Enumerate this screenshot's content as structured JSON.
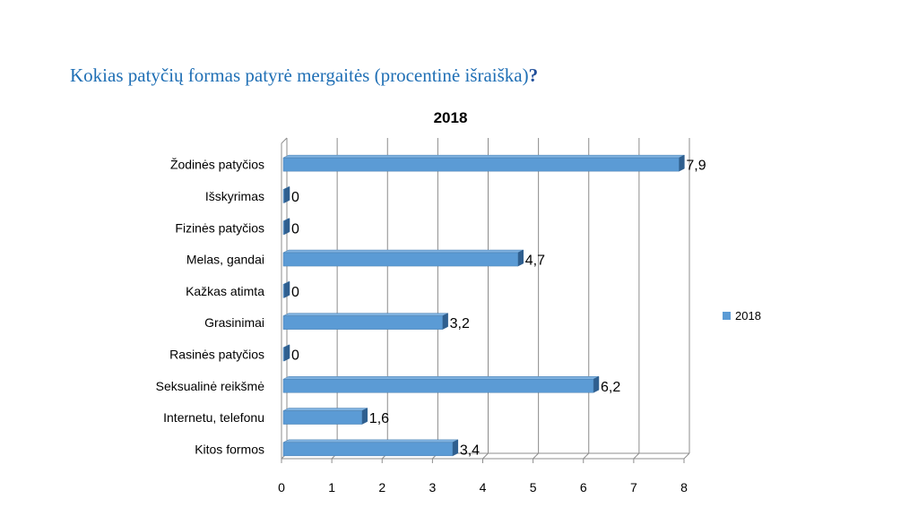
{
  "slide": {
    "title_main": "Kokias patyčių formas patyrė mergaitės (procentinė išraiška)",
    "title_mark": "?"
  },
  "chart_data": {
    "type": "bar",
    "orientation": "horizontal",
    "title": "2018",
    "categories": [
      "Žodinės patyčios",
      "Išskyrimas",
      "Fizinės patyčios",
      "Melas, gandai",
      "Kažkas atimta",
      "Grasinimai",
      "Rasinės patyčios",
      "Seksualinė reikšmė",
      "Internetu, telefonu",
      "Kitos formos"
    ],
    "series": [
      {
        "name": "2018",
        "values": [
          7.9,
          0,
          0,
          4.7,
          0,
          3.2,
          0,
          6.2,
          1.6,
          3.4
        ],
        "labels": [
          "7,9",
          "0",
          "0",
          "4,7",
          "0",
          "3,2",
          "0",
          "6,2",
          "1,6",
          "3,4"
        ],
        "color": "#5b9bd5"
      }
    ],
    "xlim": [
      0,
      8
    ],
    "ticks": [
      "0",
      "1",
      "2",
      "3",
      "4",
      "5",
      "6",
      "7",
      "8"
    ],
    "grid": true,
    "legend": "right",
    "style": "3d"
  }
}
